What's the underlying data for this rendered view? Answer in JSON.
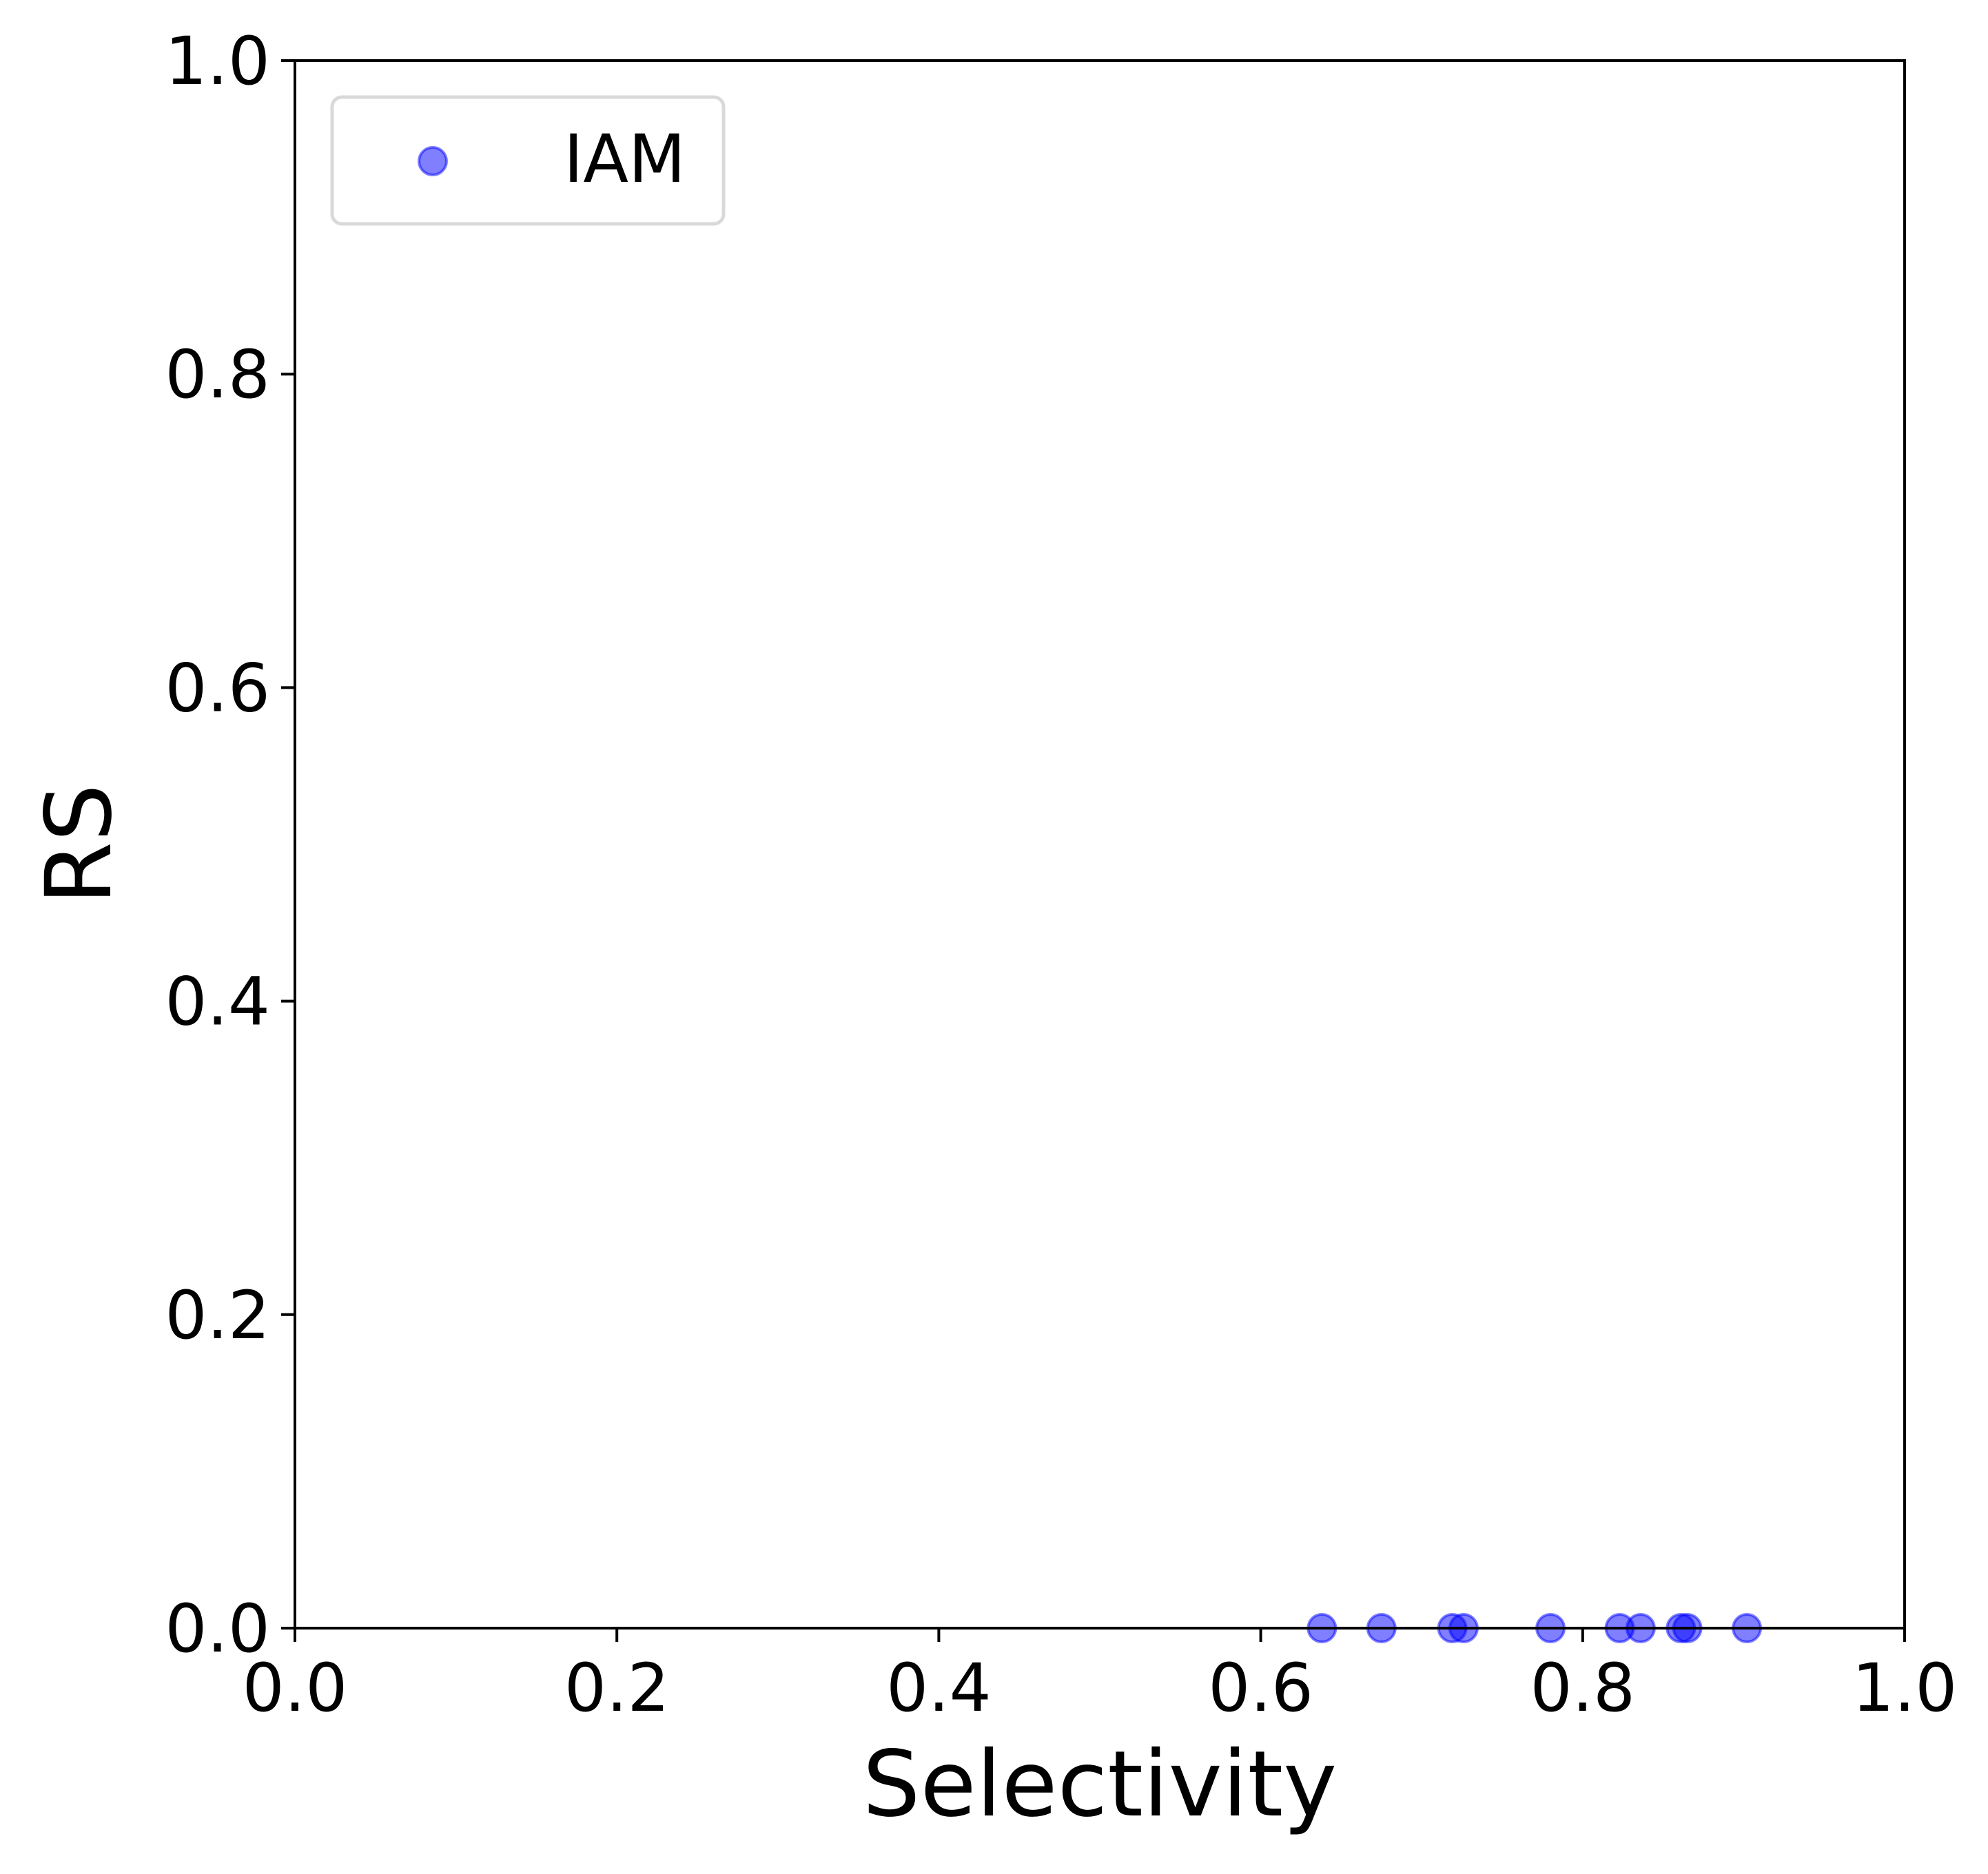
{
  "chart_data": {
    "type": "scatter",
    "title": "",
    "xlabel": "Selectivity",
    "ylabel": "RS",
    "xlim": [
      0.0,
      1.0
    ],
    "ylim": [
      0.0,
      1.0
    ],
    "xticks": [
      "0.0",
      "0.2",
      "0.4",
      "0.6",
      "0.8",
      "1.0"
    ],
    "yticks": [
      "0.0",
      "0.2",
      "0.4",
      "0.6",
      "0.8",
      "1.0"
    ],
    "grid": false,
    "legend_position": "top-left",
    "series": [
      {
        "name": "IAM",
        "color": "#0000ff",
        "points": [
          {
            "x": 0.638,
            "y": 0.0
          },
          {
            "x": 0.675,
            "y": 0.0
          },
          {
            "x": 0.719,
            "y": 0.0
          },
          {
            "x": 0.726,
            "y": 0.0
          },
          {
            "x": 0.78,
            "y": 0.0
          },
          {
            "x": 0.823,
            "y": 0.0
          },
          {
            "x": 0.836,
            "y": 0.0
          },
          {
            "x": 0.861,
            "y": 0.0
          },
          {
            "x": 0.865,
            "y": 0.0
          },
          {
            "x": 0.902,
            "y": 0.0
          }
        ]
      }
    ]
  }
}
